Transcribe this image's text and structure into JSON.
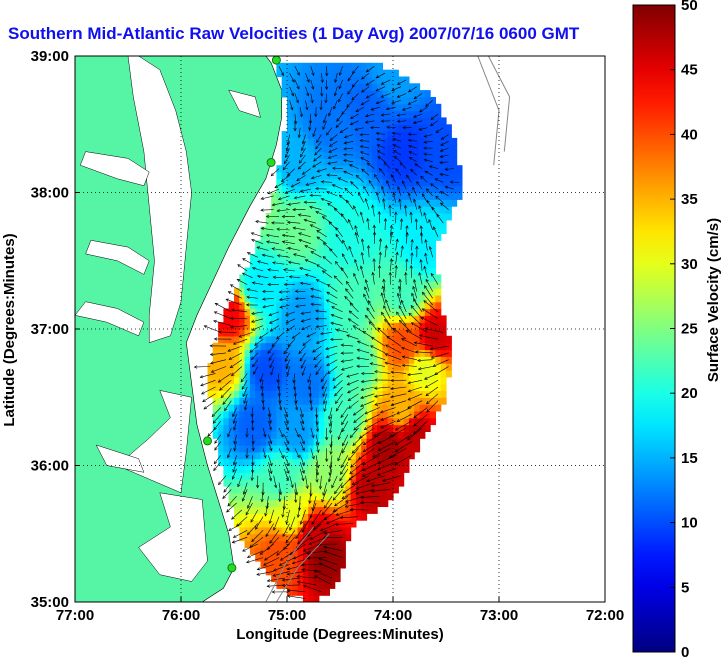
{
  "chart_data": {
    "type": "heatmap",
    "title": "Southern Mid-Atlantic Raw Velocities (1 Day Avg) 2007/07/16 0600 GMT",
    "xlabel": "Longitude (Degrees:Minutes)",
    "ylabel": "Latitude (Degrees:Minutes)",
    "colorbar_label": "Surface Velocity (cm/s)",
    "xlim": [
      -77,
      -72
    ],
    "ylim": [
      35,
      39
    ],
    "x_ticks": [
      {
        "value": -77,
        "label": "77:00"
      },
      {
        "value": -76,
        "label": "76:00"
      },
      {
        "value": -75,
        "label": "75:00"
      },
      {
        "value": -74,
        "label": "74:00"
      },
      {
        "value": -73,
        "label": "73:00"
      },
      {
        "value": -72,
        "label": "72:00"
      }
    ],
    "y_ticks": [
      {
        "value": 39,
        "label": "39:00"
      },
      {
        "value": 38,
        "label": "38:00"
      },
      {
        "value": 37,
        "label": "37:00"
      },
      {
        "value": 36,
        "label": "36:00"
      },
      {
        "value": 35,
        "label": "35:00"
      }
    ],
    "colorbar": {
      "min": 0,
      "max": 50,
      "ticks": [
        0,
        5,
        10,
        15,
        20,
        25,
        30,
        35,
        40,
        45,
        50
      ],
      "colormap": "jet"
    },
    "grid": true,
    "grid_style": "dotted",
    "land_color": "#55f5a5",
    "water_color": "#ffffff",
    "arrow_color": "#000000",
    "velocity_regions": [
      {
        "lon": -74.6,
        "lat": 38.5,
        "value": 12
      },
      {
        "lon": -74.2,
        "lat": 38.6,
        "value": 11
      },
      {
        "lon": -73.9,
        "lat": 38.3,
        "value": 9
      },
      {
        "lon": -73.5,
        "lat": 38.3,
        "value": 10
      },
      {
        "lon": -74.0,
        "lat": 38.85,
        "value": 14
      },
      {
        "lon": -74.9,
        "lat": 38.2,
        "value": 15
      },
      {
        "lon": -75.3,
        "lat": 38.0,
        "value": 26
      },
      {
        "lon": -74.9,
        "lat": 37.75,
        "value": 24
      },
      {
        "lon": -74.4,
        "lat": 37.7,
        "value": 20
      },
      {
        "lon": -73.7,
        "lat": 37.6,
        "value": 18
      },
      {
        "lon": -75.25,
        "lat": 37.3,
        "value": 18
      },
      {
        "lon": -74.85,
        "lat": 37.1,
        "value": 14
      },
      {
        "lon": -74.4,
        "lat": 37.2,
        "value": 22
      },
      {
        "lon": -73.9,
        "lat": 37.25,
        "value": 22
      },
      {
        "lon": -75.55,
        "lat": 37.1,
        "value": 44
      },
      {
        "lon": -75.6,
        "lat": 36.75,
        "value": 35
      },
      {
        "lon": -75.2,
        "lat": 36.7,
        "value": 10
      },
      {
        "lon": -74.8,
        "lat": 36.6,
        "value": 12
      },
      {
        "lon": -74.35,
        "lat": 36.75,
        "value": 22
      },
      {
        "lon": -73.9,
        "lat": 36.9,
        "value": 40
      },
      {
        "lon": -73.6,
        "lat": 36.95,
        "value": 46
      },
      {
        "lon": -73.7,
        "lat": 36.7,
        "value": 30
      },
      {
        "lon": -75.3,
        "lat": 36.3,
        "value": 11
      },
      {
        "lon": -74.9,
        "lat": 36.25,
        "value": 14
      },
      {
        "lon": -74.45,
        "lat": 36.35,
        "value": 22
      },
      {
        "lon": -74.05,
        "lat": 36.15,
        "value": 48
      },
      {
        "lon": -73.8,
        "lat": 36.25,
        "value": 47
      },
      {
        "lon": -73.9,
        "lat": 36.4,
        "value": 35
      },
      {
        "lon": -75.05,
        "lat": 35.9,
        "value": 22
      },
      {
        "lon": -74.6,
        "lat": 35.95,
        "value": 26
      },
      {
        "lon": -74.2,
        "lat": 35.85,
        "value": 47
      },
      {
        "lon": -74.95,
        "lat": 35.65,
        "value": 30
      },
      {
        "lon": -74.75,
        "lat": 35.5,
        "value": 46
      },
      {
        "lon": -74.65,
        "lat": 35.35,
        "value": 49
      },
      {
        "lon": -75.05,
        "lat": 35.35,
        "value": 40
      }
    ],
    "radar_sites": [
      {
        "lon": -75.1,
        "lat": 38.97
      },
      {
        "lon": -75.15,
        "lat": 38.22
      },
      {
        "lon": -75.75,
        "lat": 36.18
      },
      {
        "lon": -75.52,
        "lat": 35.25
      }
    ]
  }
}
